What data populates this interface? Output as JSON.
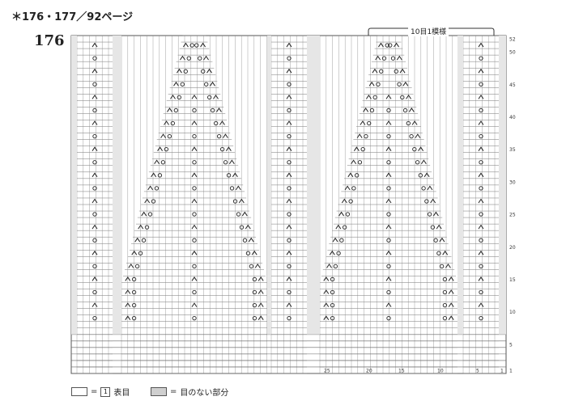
{
  "header": {
    "title": "＊176・177／92ページ"
  },
  "chart_number": "176",
  "repeat_label": "10目1模様",
  "row_numbers": [
    "52",
    "50",
    "45",
    "40",
    "35",
    "30",
    "25",
    "20",
    "15",
    "10",
    "5",
    "1"
  ],
  "stitch_numbers": [
    "25",
    "20",
    "15",
    "10",
    "5",
    "1"
  ],
  "legend": [
    {
      "symbol": "1",
      "eq": "=",
      "text": "表目",
      "style": "plain"
    },
    {
      "symbol": "",
      "eq": "=",
      "text": "目のない部分",
      "style": "gray"
    }
  ],
  "colors": {
    "grid": "#555555",
    "gray_cell": "#cfcfcf",
    "symbol": "#222222"
  }
}
